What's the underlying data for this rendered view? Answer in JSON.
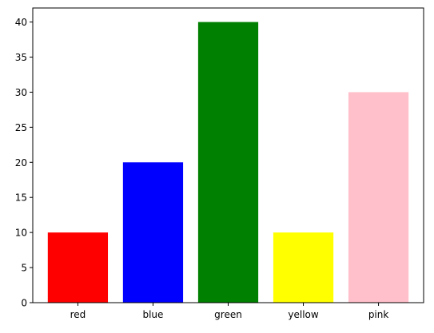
{
  "chart_data": {
    "type": "bar",
    "title": "",
    "xlabel": "",
    "ylabel": "",
    "categories": [
      "red",
      "blue",
      "green",
      "yellow",
      "pink"
    ],
    "values": [
      10,
      20,
      40,
      10,
      30
    ],
    "colors": [
      "#ff0000",
      "#0000ff",
      "#008000",
      "#ffff00",
      "#ffc0cb"
    ],
    "ylim": [
      0,
      42
    ],
    "yticks": [
      0,
      5,
      10,
      15,
      20,
      25,
      30,
      35,
      40
    ],
    "grid": false,
    "legend": "none"
  }
}
